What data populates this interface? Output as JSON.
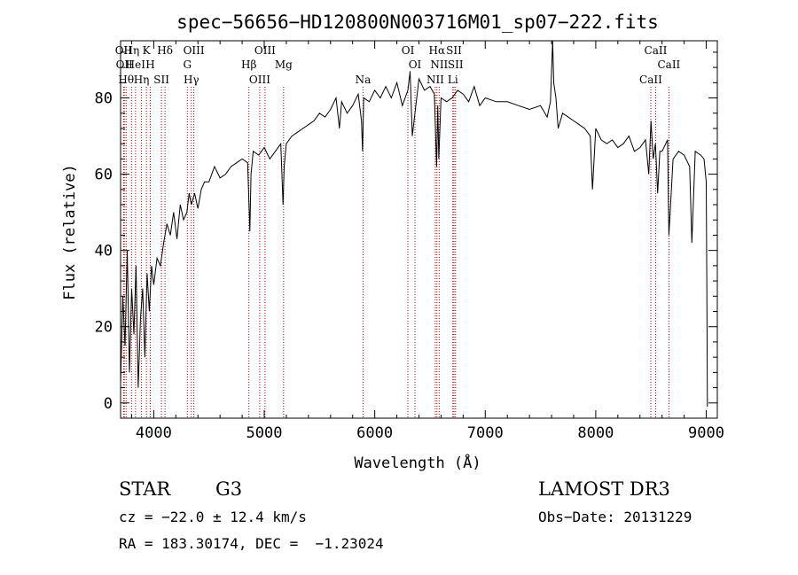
{
  "chart_data": {
    "type": "line",
    "title": "spec−56656−HD120800N003716M01_sp07−222.fits",
    "xlabel": "Wavelength (Å)",
    "ylabel": "Flux (relative)",
    "xlim": [
      3700,
      9100
    ],
    "ylim": [
      -4,
      95
    ],
    "x_ticks": [
      4000,
      5000,
      6000,
      7000,
      8000,
      9000
    ],
    "y_ticks": [
      0,
      20,
      40,
      60,
      80
    ],
    "series": [
      {
        "name": "flux",
        "x": [
          3700,
          3720,
          3740,
          3760,
          3780,
          3800,
          3820,
          3840,
          3860,
          3880,
          3900,
          3920,
          3940,
          3960,
          3980,
          4000,
          4030,
          4060,
          4090,
          4120,
          4150,
          4180,
          4210,
          4240,
          4270,
          4300,
          4320,
          4340,
          4370,
          4400,
          4430,
          4460,
          4500,
          4550,
          4600,
          4650,
          4700,
          4750,
          4800,
          4850,
          4870,
          4880,
          4900,
          4950,
          5000,
          5050,
          5100,
          5150,
          5170,
          5180,
          5200,
          5250,
          5300,
          5350,
          5400,
          5450,
          5500,
          5550,
          5600,
          5650,
          5680,
          5700,
          5750,
          5800,
          5850,
          5880,
          5890,
          5900,
          5950,
          6000,
          6050,
          6100,
          6150,
          6200,
          6250,
          6300,
          6320,
          6340,
          6380,
          6400,
          6450,
          6500,
          6540,
          6560,
          6570,
          6580,
          6600,
          6650,
          6700,
          6750,
          6800,
          6850,
          6900,
          6950,
          7000,
          7100,
          7200,
          7300,
          7400,
          7500,
          7560,
          7590,
          7610,
          7620,
          7640,
          7660,
          7700,
          7750,
          7800,
          7850,
          7900,
          7950,
          7970,
          8000,
          8050,
          8100,
          8150,
          8200,
          8250,
          8300,
          8350,
          8400,
          8450,
          8480,
          8500,
          8520,
          8540,
          8560,
          8580,
          8600,
          8650,
          8662,
          8700,
          8750,
          8800,
          8850,
          8870,
          8900,
          8950,
          8980,
          9000,
          9005,
          9010
        ],
        "values": [
          5,
          28,
          15,
          40,
          8,
          30,
          18,
          36,
          4,
          22,
          30,
          12,
          34,
          24,
          36,
          31,
          38,
          36,
          42,
          47,
          44,
          50,
          43,
          52,
          48,
          50,
          55,
          52,
          55,
          51,
          56,
          58,
          58,
          62,
          59,
          60,
          62,
          63,
          64,
          63,
          45,
          60,
          66,
          65,
          67,
          64,
          66,
          68,
          52,
          62,
          68,
          70,
          71,
          72,
          73,
          74,
          76,
          75,
          77,
          80,
          72,
          79,
          76,
          78,
          81,
          74,
          66,
          80,
          79,
          82,
          80,
          83,
          80,
          84,
          78,
          82,
          87,
          70,
          80,
          85,
          82,
          83,
          81,
          62,
          78,
          64,
          80,
          79,
          80,
          82,
          81,
          79,
          83,
          78,
          80,
          79,
          79,
          78,
          77,
          78,
          75,
          79,
          95,
          84,
          80,
          72,
          76,
          75,
          74,
          73,
          72,
          70,
          56,
          72,
          69,
          68,
          69,
          67,
          68,
          70,
          66,
          67,
          69,
          60,
          74,
          64,
          68,
          55,
          66,
          66,
          69,
          44,
          64,
          66,
          65,
          62,
          42,
          66,
          65,
          64,
          58,
          30,
          -1
        ]
      }
    ],
    "line_markers": [
      {
        "wl": 3727,
        "label": "OII"
      },
      {
        "wl": 3734,
        "label": "OII"
      },
      {
        "wl": 3750,
        "label": "Hθ"
      },
      {
        "wl": 3799,
        "label": "Hη"
      },
      {
        "wl": 3835,
        "label": "HeI"
      },
      {
        "wl": 3889,
        "label": "Hη"
      },
      {
        "wl": 3934,
        "label": "K"
      },
      {
        "wl": 3969,
        "label": "H"
      },
      {
        "wl": 4070,
        "label": "SII"
      },
      {
        "wl": 4102,
        "label": "Hδ"
      },
      {
        "wl": 4304,
        "label": "G"
      },
      {
        "wl": 4340,
        "label": "Hγ"
      },
      {
        "wl": 4363,
        "label": "OIII"
      },
      {
        "wl": 4861,
        "label": "Hβ"
      },
      {
        "wl": 4959,
        "label": "OIII"
      },
      {
        "wl": 5007,
        "label": "OIII"
      },
      {
        "wl": 5175,
        "label": "Mg"
      },
      {
        "wl": 5894,
        "label": "Na"
      },
      {
        "wl": 6300,
        "label": "OI"
      },
      {
        "wl": 6364,
        "label": "OI"
      },
      {
        "wl": 6548,
        "label": "NII"
      },
      {
        "wl": 6563,
        "label": "Hα"
      },
      {
        "wl": 6583,
        "label": "NII"
      },
      {
        "wl": 6707,
        "label": "Li"
      },
      {
        "wl": 6717,
        "label": "SII"
      },
      {
        "wl": 6731,
        "label": "SII"
      },
      {
        "wl": 8498,
        "label": "CaII"
      },
      {
        "wl": 8542,
        "label": "CaII"
      },
      {
        "wl": 8662,
        "label": "CaII"
      }
    ]
  },
  "info": {
    "object_class": "STAR",
    "subclass": "G3",
    "survey": "LAMOST DR3",
    "cz": "cz = −22.0 ± 12.4 km/s",
    "obs_date": "Obs−Date: 20131229",
    "coords": "RA = 183.30174, DEC =  −1.23024"
  }
}
